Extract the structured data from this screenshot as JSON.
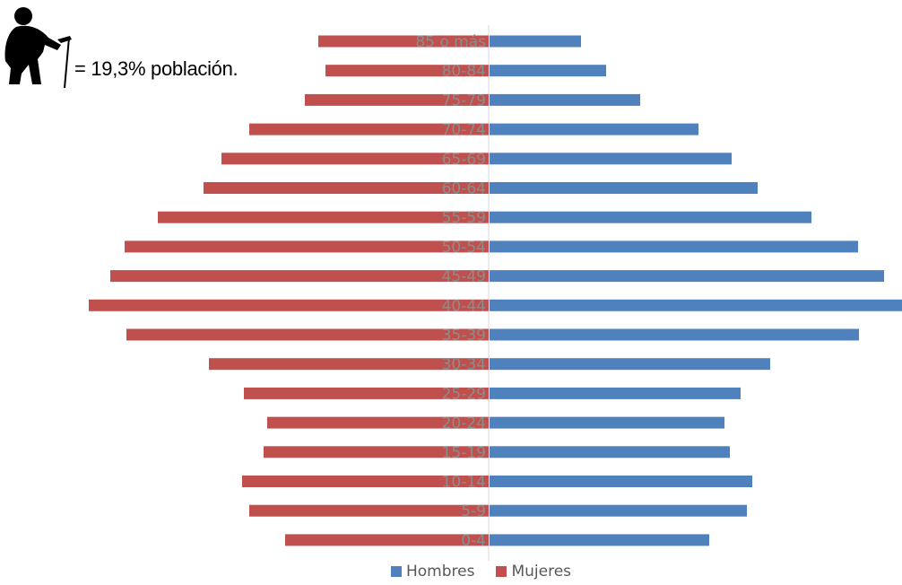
{
  "annotation": {
    "icon": "elderly-person-with-cane-icon",
    "text": "= 19,3% población."
  },
  "chart_data": {
    "type": "bar",
    "orientation": "horizontal-population-pyramid",
    "categories": [
      "85 o más",
      "80-84",
      "75-79",
      "70-74",
      "65-69",
      "60-64",
      "55-59",
      "50-54",
      "45-49",
      "40-44",
      "35-39",
      "30-34",
      "25-29",
      "20-24",
      "15-19",
      "10-14",
      "5-9",
      "0-4"
    ],
    "series": [
      {
        "name": "Hombres",
        "color": "#4f81bd",
        "values": [
          102,
          130,
          168,
          233,
          270,
          299,
          359,
          411,
          440,
          460,
          412,
          313,
          280,
          262,
          268,
          293,
          287,
          245
        ]
      },
      {
        "name": "Mujeres",
        "color": "#c0504d",
        "values": [
          190,
          182,
          205,
          267,
          298,
          318,
          369,
          406,
          422,
          446,
          404,
          312,
          273,
          247,
          251,
          275,
          267,
          227
        ]
      }
    ],
    "legend": "bottom",
    "grid": false
  }
}
